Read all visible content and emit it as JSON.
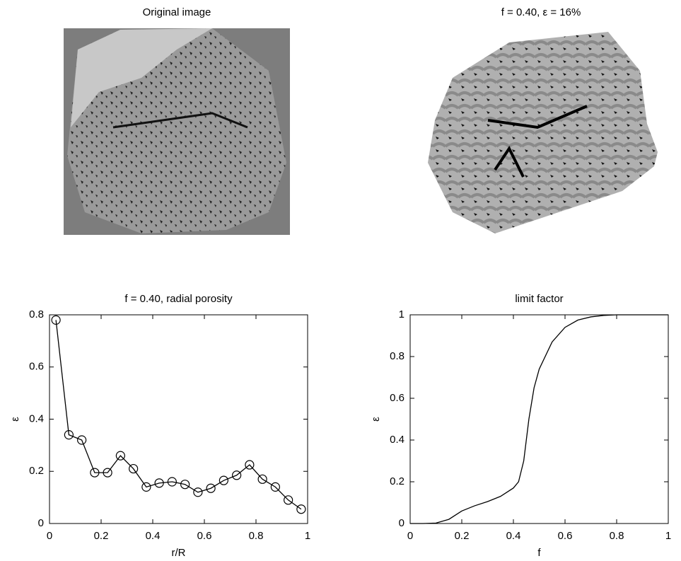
{
  "chart_data": [
    {
      "type": "image",
      "title": "Original image"
    },
    {
      "type": "image",
      "title": "f = 0.40, ε = 16%"
    },
    {
      "type": "line",
      "title": "f = 0.40, radial porosity",
      "xlabel": "r/R",
      "ylabel": "ε",
      "x": [
        0.025,
        0.075,
        0.125,
        0.175,
        0.225,
        0.275,
        0.325,
        0.375,
        0.425,
        0.475,
        0.525,
        0.575,
        0.625,
        0.675,
        0.725,
        0.775,
        0.825,
        0.875,
        0.925,
        0.975
      ],
      "values": [
        0.78,
        0.34,
        0.32,
        0.195,
        0.195,
        0.26,
        0.21,
        0.14,
        0.155,
        0.16,
        0.15,
        0.12,
        0.135,
        0.165,
        0.185,
        0.225,
        0.17,
        0.14,
        0.09,
        0.055
      ],
      "color": "#000000",
      "marker": "circle",
      "xlim": [
        0,
        1
      ],
      "xticks": [
        0,
        0.2,
        0.4,
        0.6,
        0.8,
        1
      ],
      "ylim": [
        0,
        0.8
      ],
      "yticks": [
        0,
        0.2,
        0.4,
        0.6,
        0.8
      ]
    },
    {
      "type": "line",
      "title": "limit factor",
      "xlabel": "f",
      "ylabel": "ε",
      "x": [
        0,
        0.05,
        0.1,
        0.15,
        0.2,
        0.25,
        0.3,
        0.35,
        0.4,
        0.42,
        0.44,
        0.46,
        0.48,
        0.5,
        0.55,
        0.6,
        0.65,
        0.7,
        0.75,
        0.8,
        0.9,
        1
      ],
      "values": [
        0,
        0,
        0.002,
        0.02,
        0.06,
        0.085,
        0.105,
        0.13,
        0.17,
        0.2,
        0.3,
        0.5,
        0.65,
        0.74,
        0.87,
        0.94,
        0.975,
        0.99,
        0.997,
        1,
        1,
        1
      ],
      "color": "#000000",
      "xlim": [
        0,
        1
      ],
      "xticks": [
        0,
        0.2,
        0.4,
        0.6,
        0.8,
        1
      ],
      "ylim": [
        0,
        1
      ],
      "yticks": [
        0,
        0.2,
        0.4,
        0.6,
        0.8,
        1
      ]
    }
  ]
}
